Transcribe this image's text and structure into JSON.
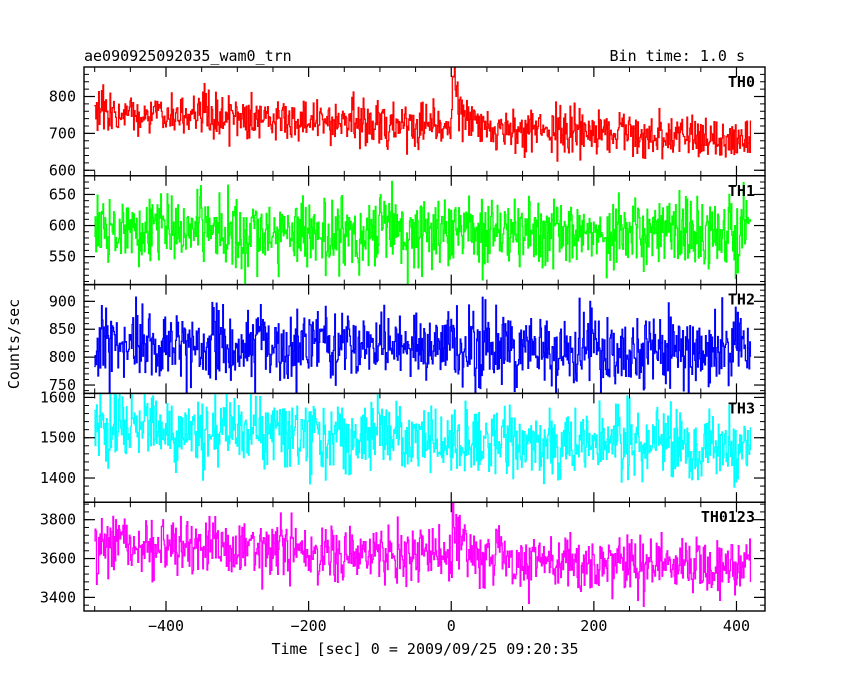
{
  "header": {
    "title": "ae090925092035_wam0_trn",
    "bin_time": "Bin time: 1.0 s"
  },
  "axes": {
    "xlabel": "Time [sec] 0 = 2009/09/25 09:20:35",
    "ylabel": "Counts/sec"
  },
  "chart_data": {
    "type": "line",
    "xlim": [
      -515,
      440
    ],
    "x_start": -500,
    "x_end": 420,
    "x_step": 1,
    "x_ticks": [
      -400,
      -200,
      0,
      200,
      400
    ],
    "x_tick_labels": [
      "−400",
      "−200",
      "0",
      "200",
      "400"
    ],
    "panels": [
      {
        "name": "TH0",
        "color": "#ff0000",
        "ylim": [
          585,
          880
        ],
        "y_ticks": [
          600,
          700,
          800
        ],
        "y_tick_labels": [
          "600",
          "700",
          "800"
        ],
        "start_level": 760,
        "end_level": 680,
        "noise": 30,
        "peak_x": 2,
        "peak_height": 150,
        "peak_decay": 12
      },
      {
        "name": "TH1",
        "color": "#00ff00",
        "ylim": [
          505,
          680
        ],
        "y_ticks": [
          550,
          600,
          650
        ],
        "y_tick_labels": [
          "550",
          "600",
          "650"
        ],
        "start_level": 590,
        "end_level": 590,
        "noise": 30,
        "peak_x": 2,
        "peak_height": 25,
        "peak_decay": 10
      },
      {
        "name": "TH2",
        "color": "#0000ff",
        "ylim": [
          735,
          930
        ],
        "y_ticks": [
          750,
          800,
          850,
          900
        ],
        "y_tick_labels": [
          "750",
          "800",
          "850",
          "900"
        ],
        "start_level": 820,
        "end_level": 815,
        "noise": 35,
        "peak_x": 2,
        "peak_height": 0,
        "peak_decay": 10
      },
      {
        "name": "TH3",
        "color": "#00ffff",
        "ylim": [
          1340,
          1610
        ],
        "y_ticks": [
          1400,
          1500,
          1600
        ],
        "y_tick_labels": [
          "1400",
          "1500",
          "1600"
        ],
        "start_level": 1530,
        "end_level": 1470,
        "noise": 45,
        "peak_x": 2,
        "peak_height": 0,
        "peak_decay": 10
      },
      {
        "name": "TH0123",
        "color": "#ff00ff",
        "ylim": [
          3330,
          3890
        ],
        "y_ticks": [
          3400,
          3600,
          3800
        ],
        "y_tick_labels": [
          "3400",
          "3600",
          "3800"
        ],
        "start_level": 3690,
        "end_level": 3540,
        "noise": 75,
        "peak_x": 2,
        "peak_height": 230,
        "peak_decay": 12
      }
    ]
  }
}
